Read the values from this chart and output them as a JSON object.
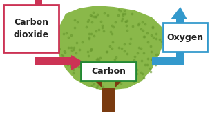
{
  "bg_color": "#ffffff",
  "tree_foliage_color": "#8ab84a",
  "tree_trunk_color": "#7a3b10",
  "dot_color": "#6a9a30",
  "co2_box_color": "#ffffff",
  "co2_border_color": "#cc3355",
  "co2_text": "Carbon\ndioxide",
  "co2_text_color": "#222222",
  "carbon_box_color": "#ffffff",
  "carbon_border_color": "#228833",
  "carbon_text": "Carbon",
  "carbon_text_color": "#222222",
  "oxygen_box_color": "#ffffff",
  "oxygen_border_color": "#3399cc",
  "oxygen_text": "Oxygen",
  "oxygen_text_color": "#222222",
  "red_arrow_color": "#cc3355",
  "blue_arrow_color": "#3399cc",
  "figsize": [
    3.04,
    1.8
  ],
  "dpi": 100
}
